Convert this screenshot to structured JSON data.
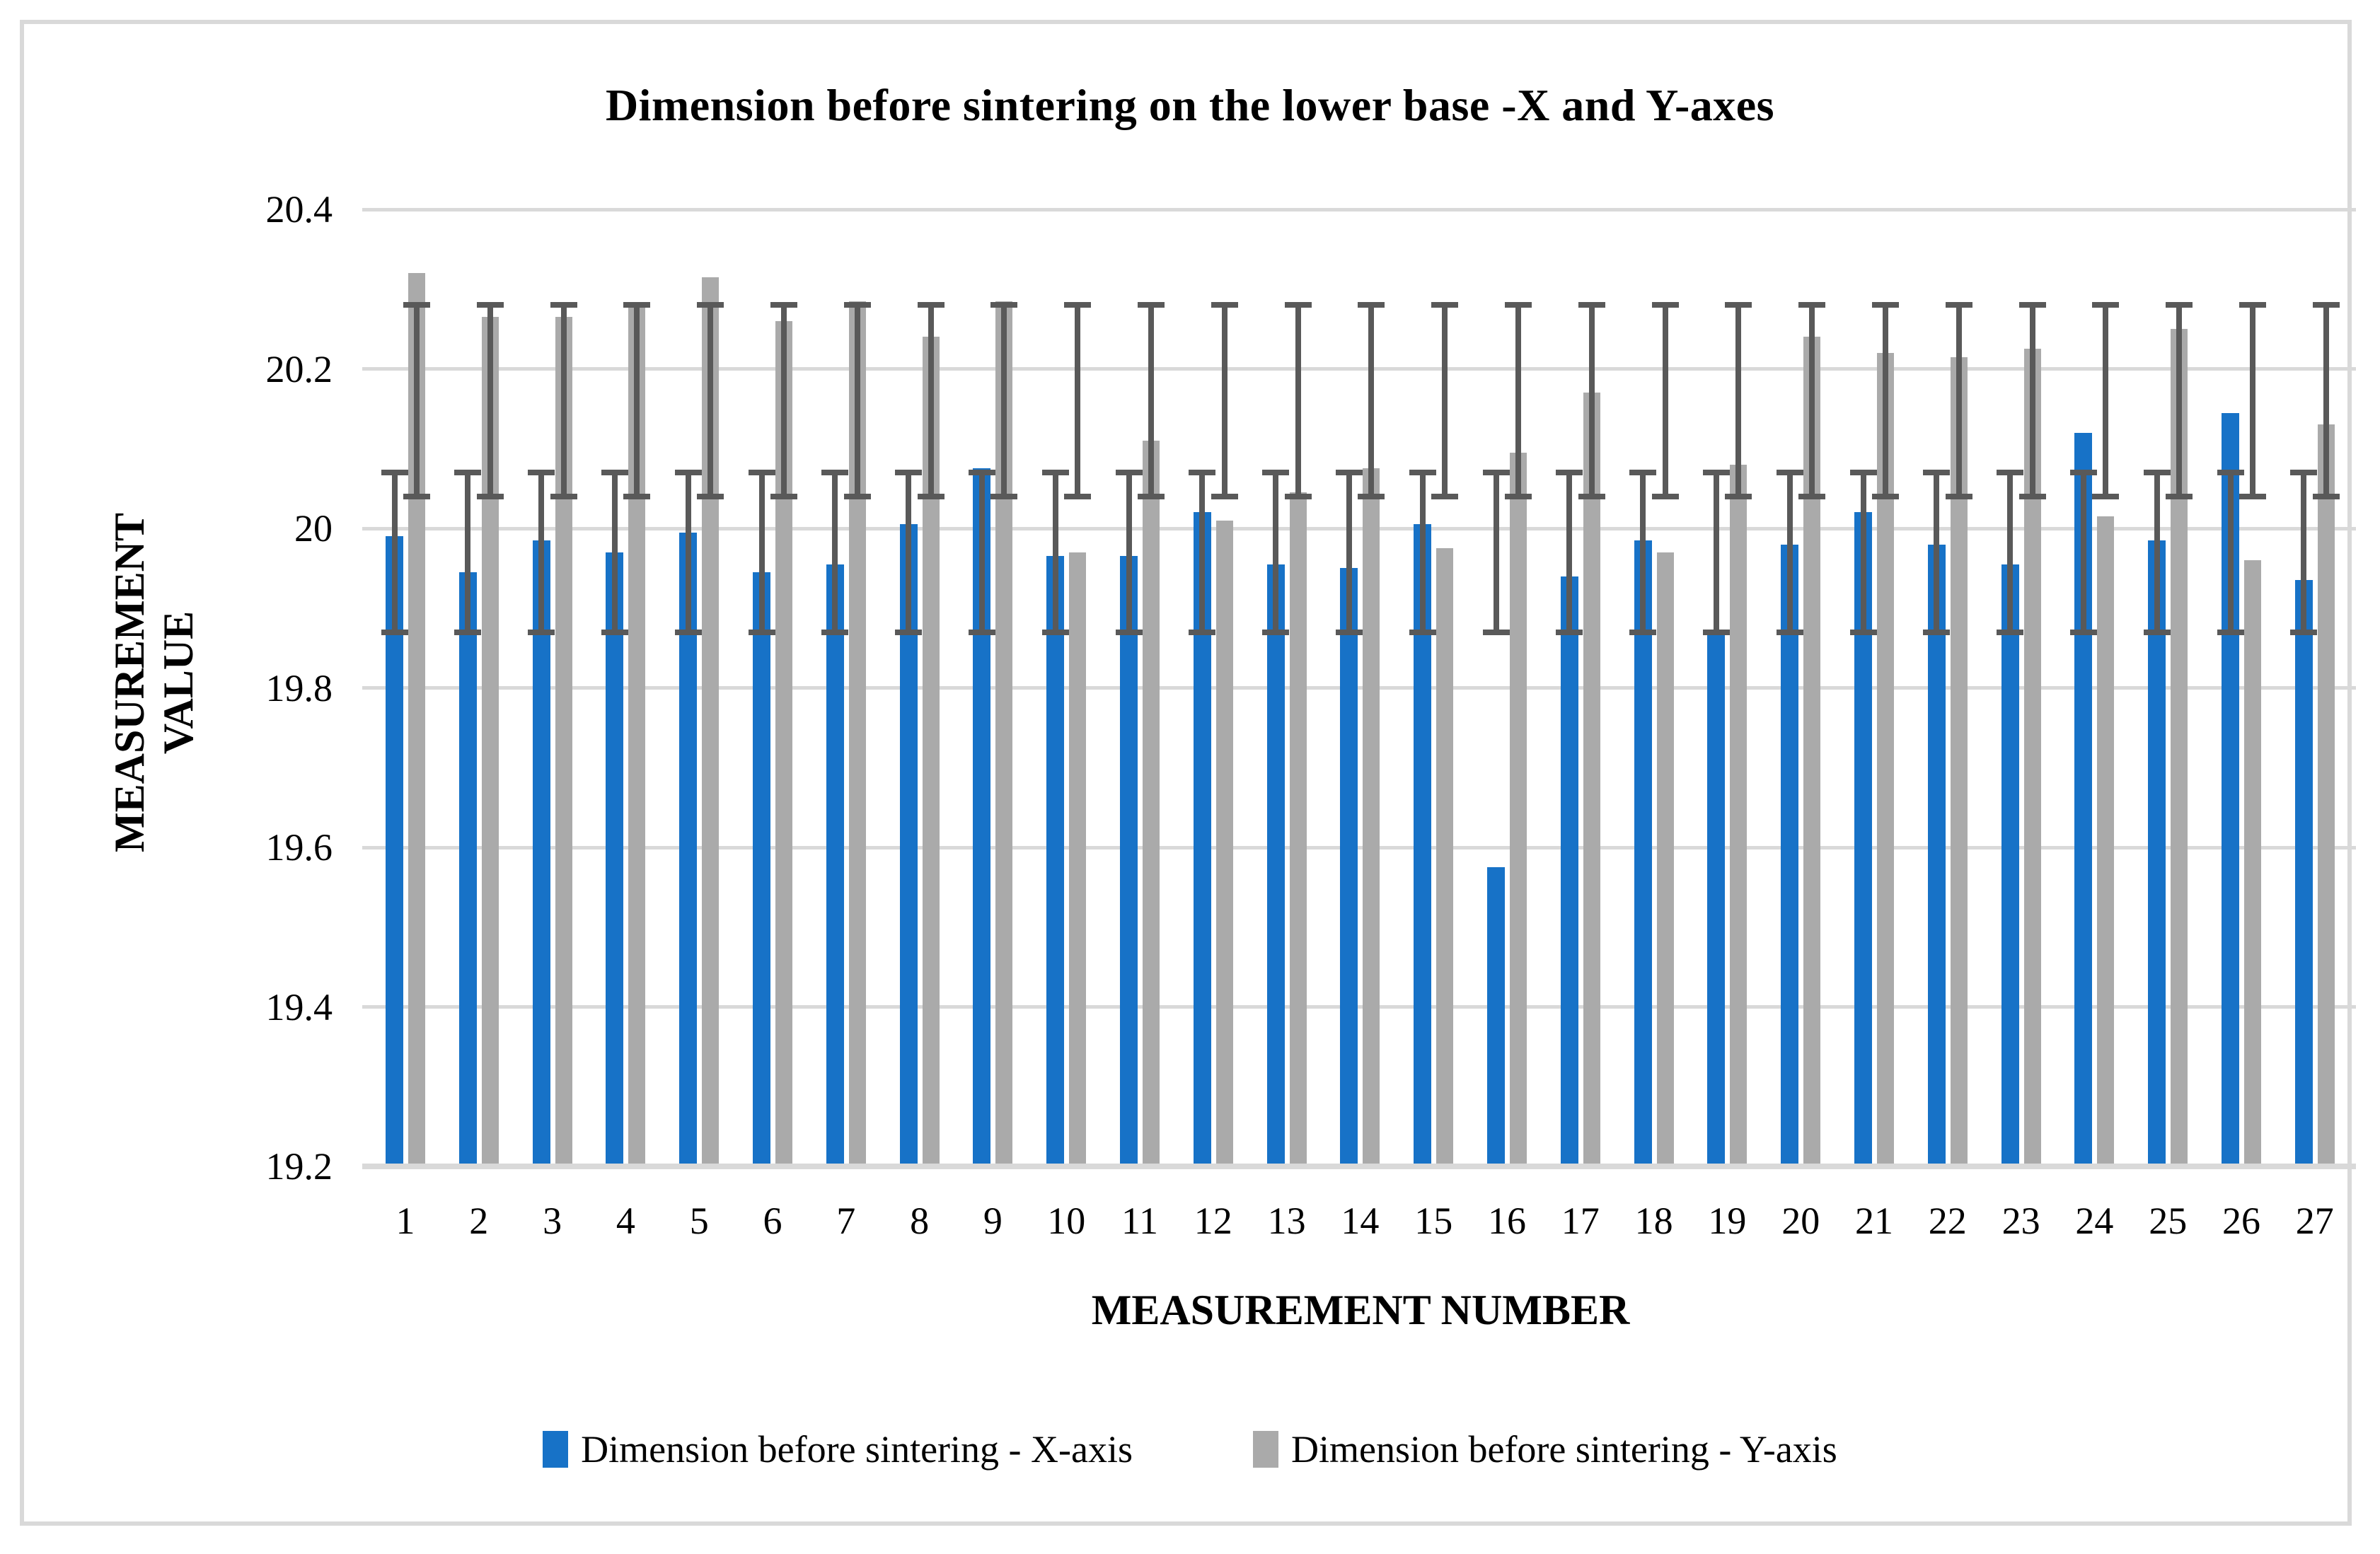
{
  "chart_data": {
    "type": "bar",
    "title": "Dimension before sintering on the lower base -X and Y-axes",
    "xlabel": "MEASUREMENT NUMBER",
    "ylabel": "MEASUREMENT VALUE",
    "ylabel_lines": {
      "0": "MEASUREMENT",
      "1": "VALUE"
    },
    "categories": [
      "1",
      "2",
      "3",
      "4",
      "5",
      "6",
      "7",
      "8",
      "9",
      "10",
      "11",
      "12",
      "13",
      "14",
      "15",
      "16",
      "17",
      "18",
      "19",
      "20",
      "21",
      "22",
      "23",
      "24",
      "25",
      "26",
      "27"
    ],
    "y_axis": {
      "min": 19.2,
      "max": 20.4,
      "step": 0.2,
      "tick_labels": [
        "20.4",
        "20.2",
        "20",
        "19.8",
        "19.6",
        "19.4",
        "19.2"
      ]
    },
    "grid": "horizontal",
    "gridline_color": "#d9d9d9",
    "error_bar_color": "#595959",
    "legend_position": "bottom",
    "series": [
      {
        "name": "Dimension before sintering - X-axis",
        "color": "#1772c7",
        "values": [
          19.99,
          19.945,
          19.985,
          19.97,
          19.995,
          19.945,
          19.955,
          20.005,
          20.075,
          19.965,
          19.965,
          20.02,
          19.955,
          19.95,
          20.005,
          19.575,
          19.94,
          19.985,
          19.87,
          19.98,
          20.02,
          19.98,
          19.955,
          20.12,
          19.985,
          20.145,
          19.935
        ],
        "error_bar": {
          "min": 19.87,
          "max": 20.07
        }
      },
      {
        "name": "Dimension before sintering - Y-axis",
        "color": "#aaaaaa",
        "values": [
          20.32,
          20.265,
          20.265,
          20.28,
          20.315,
          20.26,
          20.285,
          20.24,
          20.285,
          19.97,
          20.11,
          20.01,
          20.045,
          20.075,
          19.975,
          20.095,
          20.17,
          19.97,
          20.08,
          20.24,
          20.22,
          20.215,
          20.225,
          20.015,
          20.25,
          19.96,
          20.13
        ],
        "error_bar": {
          "min": 20.04,
          "max": 20.28
        }
      }
    ]
  }
}
